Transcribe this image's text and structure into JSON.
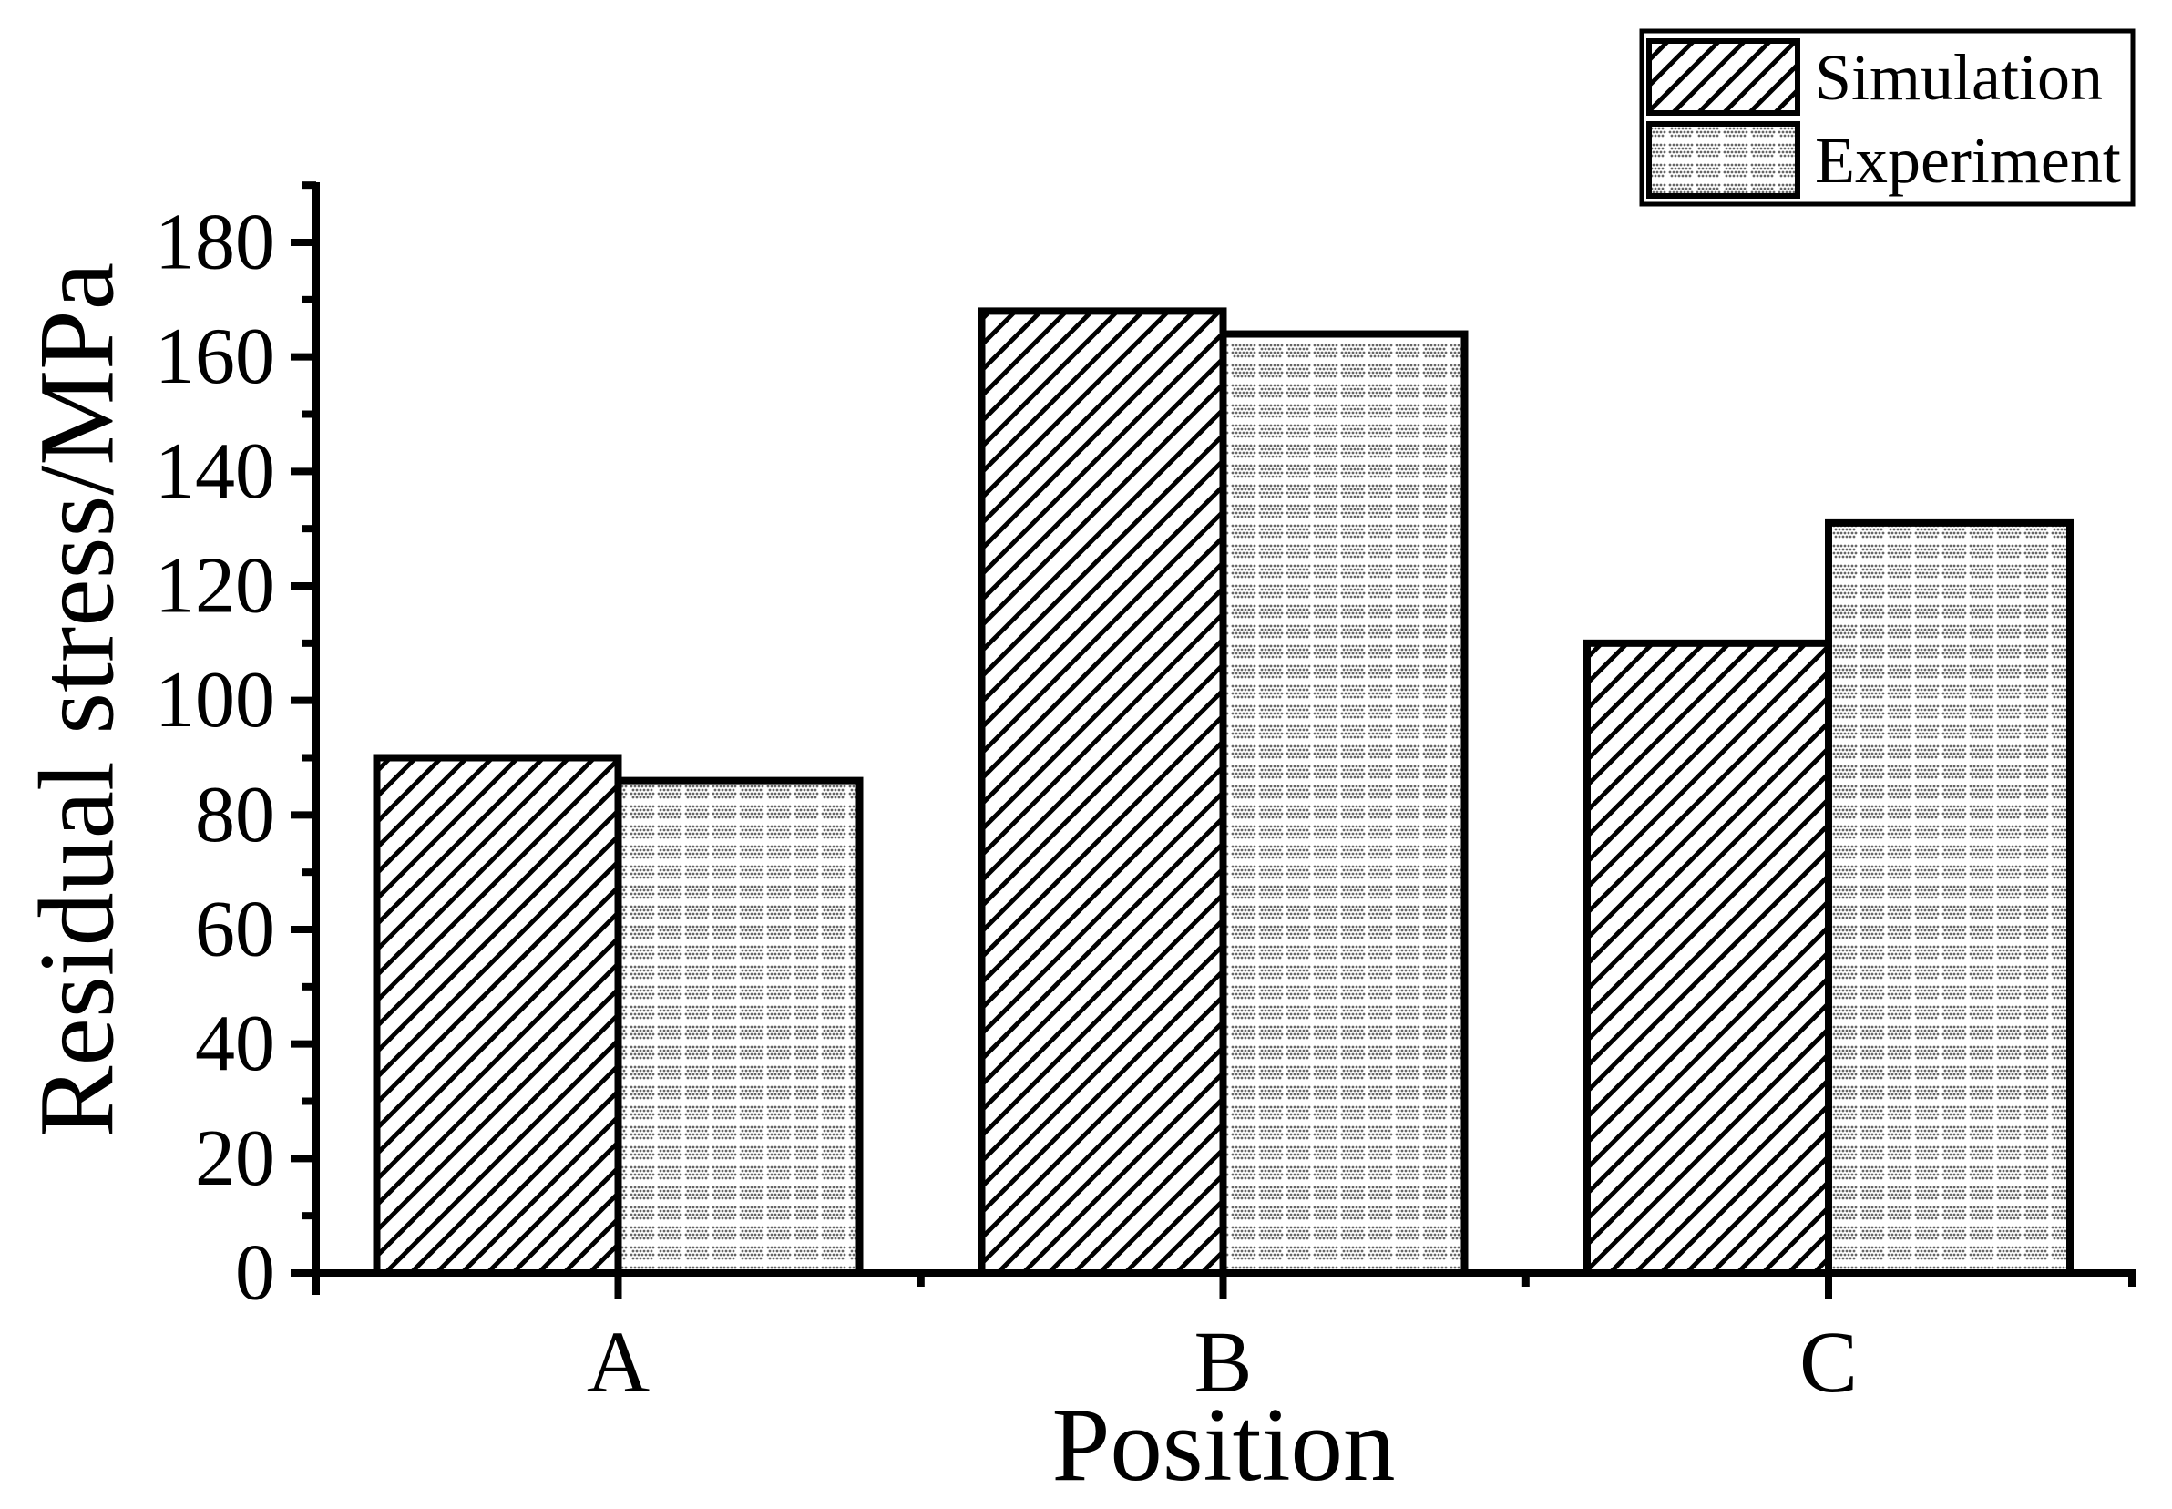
{
  "chart_data": {
    "type": "bar",
    "title": "",
    "categories": [
      "A",
      "B",
      "C"
    ],
    "series": [
      {
        "name": "Simulation",
        "pattern": "diagonal-hatch",
        "values": [
          90,
          168,
          110
        ]
      },
      {
        "name": "Experiment",
        "pattern": "dot-grid",
        "values": [
          86,
          164,
          131
        ]
      }
    ],
    "xlabel": "Position",
    "ylabel": "Residual stress/MPa",
    "ylim": [
      0,
      190
    ],
    "y_major_ticks": [
      0,
      20,
      40,
      60,
      80,
      100,
      120,
      140,
      160,
      180
    ],
    "y_minor_step": 10,
    "grid": false,
    "legend_position": "top-right"
  },
  "legend": {
    "items": [
      {
        "label": "Simulation",
        "swatch": "diagonal-hatch"
      },
      {
        "label": "Experiment",
        "swatch": "dot-grid"
      }
    ]
  },
  "colors": {
    "foreground": "#000000",
    "background": "#ffffff",
    "experiment_dot": "#666666"
  }
}
